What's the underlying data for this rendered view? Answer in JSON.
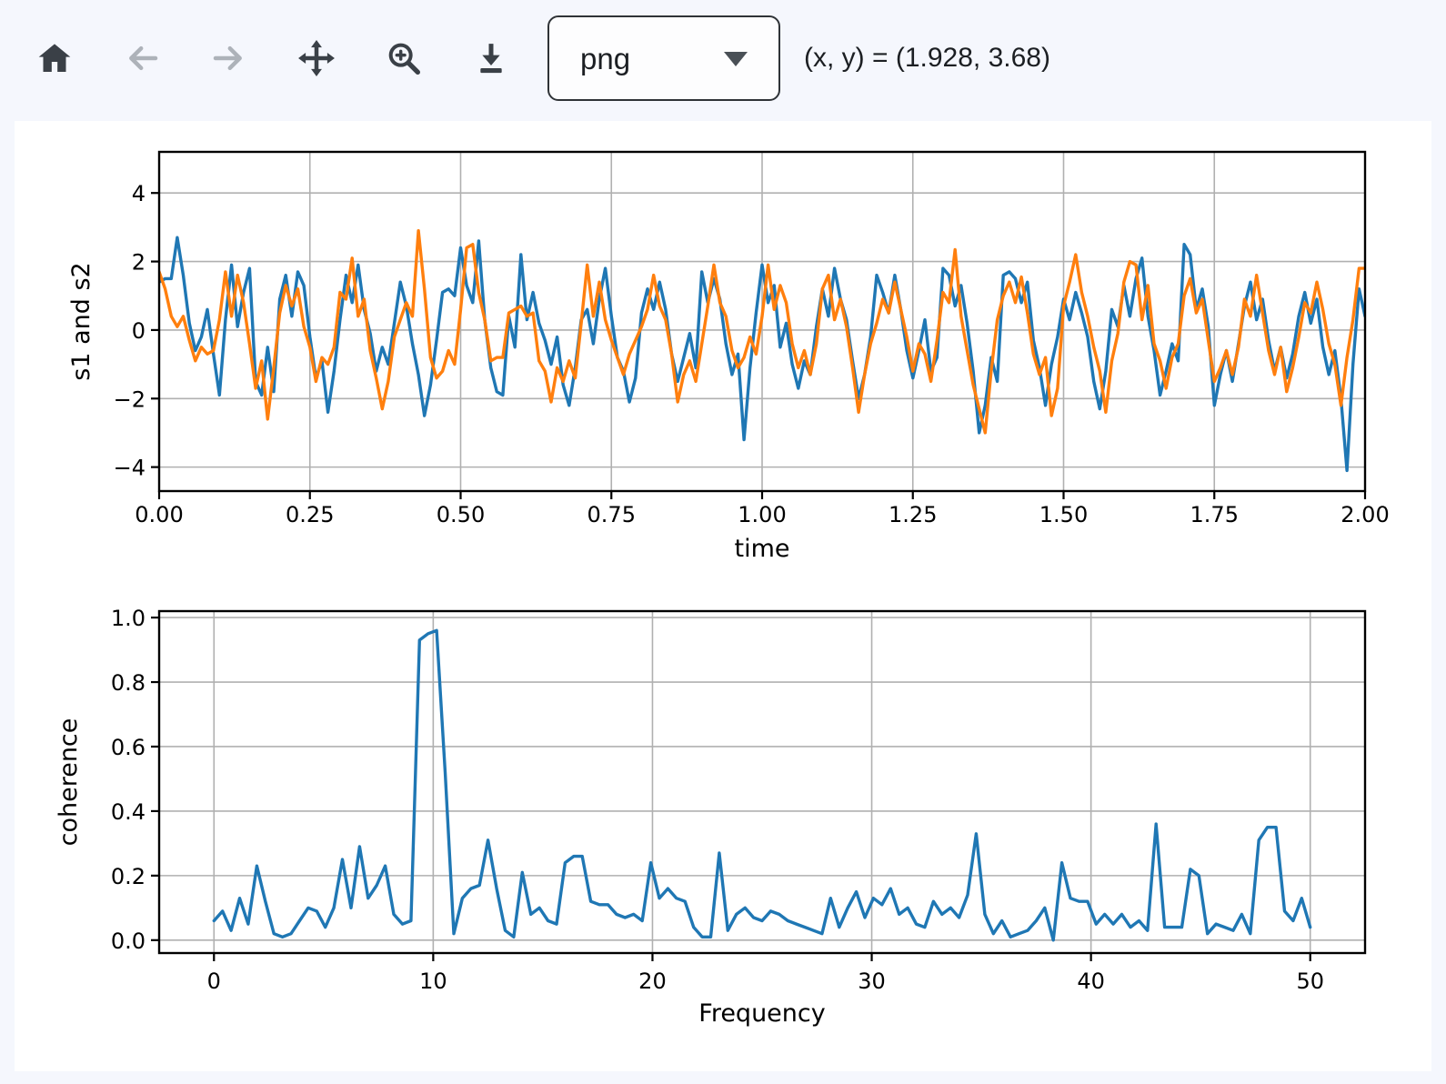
{
  "toolbar": {
    "buttons": [
      {
        "name": "home",
        "enabled": true
      },
      {
        "name": "back",
        "enabled": false
      },
      {
        "name": "forward",
        "enabled": false
      },
      {
        "name": "pan",
        "enabled": true
      },
      {
        "name": "zoom",
        "enabled": true
      },
      {
        "name": "download",
        "enabled": true
      }
    ],
    "format_value": "png",
    "coordinates": "(x, y) = (1.928, 3.68)"
  },
  "colors": {
    "page_bg": "#f5f7fd",
    "figure_bg": "#ffffff",
    "series_blue": "#1f77b4",
    "series_orange": "#ff7f0e",
    "grid": "#b0b0b0",
    "spine": "#000000",
    "tick_text": "#000000",
    "icon_enabled": "#3a4047",
    "icon_disabled": "#adb2b9"
  },
  "chart_data": [
    {
      "type": "line",
      "title": "",
      "xlabel": "time",
      "ylabel": "s1 and s2",
      "xlim": [
        0,
        2
      ],
      "ylim": [
        -4.7,
        5.2
      ],
      "grid": true,
      "xticks": [
        0,
        0.25,
        0.5,
        0.75,
        1.0,
        1.25,
        1.5,
        1.75,
        2.0
      ],
      "xtick_labels": [
        "0.00",
        "0.25",
        "0.50",
        "0.75",
        "1.00",
        "1.25",
        "1.50",
        "1.75",
        "2.00"
      ],
      "yticks": [
        -4,
        -2,
        0,
        2,
        4
      ],
      "ytick_labels": [
        "−4",
        "−2",
        "0",
        "2",
        "4"
      ],
      "x_start": 0,
      "x_step": 0.01,
      "series": [
        {
          "name": "s1",
          "color": "#1f77b4",
          "values": [
            1.4,
            1.5,
            1.5,
            2.7,
            1.6,
            0.2,
            -0.6,
            -0.2,
            0.6,
            -0.7,
            -1.9,
            0.3,
            1.9,
            0.1,
            1.1,
            1.8,
            -1.5,
            -1.9,
            -0.5,
            -1.8,
            0.9,
            1.6,
            0.4,
            1.7,
            1.3,
            -0.2,
            -1.4,
            -0.9,
            -2.4,
            -1.2,
            0.3,
            1.6,
            0.8,
            1.9,
            0.6,
            -0.1,
            -1.2,
            -0.5,
            -1.0,
            0.2,
            1.4,
            0.7,
            -0.4,
            -1.3,
            -2.5,
            -1.6,
            -0.3,
            1.1,
            1.2,
            1.0,
            2.4,
            1.3,
            0.8,
            2.6,
            0.3,
            -1.1,
            -1.8,
            -1.9,
            0.4,
            -0.5,
            2.2,
            0.3,
            1.1,
            0.2,
            -0.3,
            -1.0,
            -0.2,
            -1.6,
            -2.2,
            -1.1,
            0.3,
            0.6,
            -0.4,
            0.9,
            1.8,
            0.4,
            -0.8,
            -1.2,
            -2.1,
            -1.4,
            0.5,
            1.2,
            0.6,
            1.4,
            0.6,
            -0.7,
            -1.5,
            -0.8,
            -0.1,
            -1.1,
            1.7,
            0.8,
            1.5,
            0.9,
            -0.4,
            -1.3,
            -0.7,
            -3.2,
            -1.1,
            0.5,
            1.9,
            0.8,
            1.3,
            -0.5,
            0.2,
            -1.0,
            -1.7,
            -0.9,
            -1.3,
            0.1,
            1.2,
            0.4,
            1.8,
            0.9,
            0.3,
            -0.9,
            -2.0,
            -1.3,
            -0.2,
            1.6,
            1.1,
            0.5,
            1.6,
            0.6,
            -0.6,
            -1.4,
            -0.6,
            0.3,
            -1.2,
            -0.8,
            1.8,
            1.6,
            0.7,
            1.3,
            0.2,
            -1.2,
            -3.0,
            -2.2,
            -0.8,
            -1.5,
            1.6,
            1.7,
            1.5,
            0.8,
            1.4,
            -0.3,
            -1.1,
            -2.2,
            -1.0,
            -0.2,
            0.9,
            0.3,
            1.1,
            0.5,
            -0.2,
            -1.5,
            -2.3,
            -1.2,
            0.6,
            0.1,
            1.3,
            0.4,
            1.5,
            2.1,
            0.4,
            -0.6,
            -1.9,
            -1.2,
            -0.4,
            -0.9,
            2.5,
            2.2,
            0.6,
            1.2,
            0.1,
            -2.2,
            -1.3,
            -0.6,
            -1.5,
            -0.4,
            0.7,
            1.4,
            0.3,
            0.9,
            -0.3,
            -1.2,
            -0.5,
            -1.4,
            -0.7,
            0.4,
            1.1,
            0.2,
            0.9,
            -0.5,
            -1.3,
            -0.6,
            -2.0,
            -4.1,
            -1.0,
            1.2,
            0.4
          ]
        },
        {
          "name": "s2",
          "color": "#ff7f0e",
          "values": [
            1.7,
            1.2,
            0.4,
            0.1,
            0.4,
            -0.3,
            -0.9,
            -0.5,
            -0.7,
            -0.6,
            0.3,
            1.7,
            0.4,
            1.6,
            0.8,
            -0.4,
            -1.7,
            -0.9,
            -2.6,
            -1.1,
            0.5,
            1.3,
            0.7,
            1.2,
            0.1,
            -0.5,
            -1.5,
            -0.8,
            -1.0,
            -0.5,
            1.1,
            0.9,
            2.1,
            0.4,
            0.9,
            -0.6,
            -1.4,
            -2.3,
            -1.5,
            -0.2,
            0.3,
            0.8,
            0.4,
            2.9,
            1.2,
            -0.8,
            -1.4,
            -1.2,
            -0.6,
            -1.0,
            0.6,
            2.4,
            2.5,
            1.1,
            0.3,
            -0.9,
            -0.8,
            -0.8,
            0.5,
            0.6,
            0.7,
            0.4,
            0.5,
            -0.9,
            -1.2,
            -2.1,
            -1.1,
            -1.5,
            -0.9,
            -1.4,
            0.2,
            1.9,
            0.4,
            1.4,
            0.3,
            -0.3,
            -0.8,
            -1.3,
            -0.7,
            -0.3,
            0.1,
            0.6,
            1.6,
            0.7,
            0.3,
            -0.7,
            -2.1,
            -1.3,
            -0.9,
            -1.5,
            -0.4,
            0.7,
            1.9,
            0.8,
            0.4,
            -0.6,
            -1.1,
            -0.8,
            -0.2,
            -0.7,
            0.4,
            1.9,
            0.6,
            1.3,
            0.8,
            -0.4,
            -1.1,
            -0.6,
            -1.3,
            -0.4,
            1.2,
            1.6,
            0.3,
            0.9,
            0.1,
            -1.1,
            -2.4,
            -1.3,
            -0.4,
            0.2,
            0.9,
            0.5,
            1.4,
            0.6,
            -0.2,
            -1.2,
            -0.4,
            -0.7,
            -1.5,
            -0.3,
            1.1,
            0.8,
            2.35,
            0.4,
            -0.6,
            -1.6,
            -2.3,
            -3.0,
            -1.2,
            0.3,
            1.0,
            1.4,
            0.8,
            1.55,
            0.5,
            -0.7,
            -1.3,
            -0.8,
            -2.5,
            -1.7,
            0.7,
            1.4,
            2.2,
            1.1,
            0.4,
            -0.5,
            -1.2,
            -2.4,
            -0.9,
            -0.1,
            1.4,
            2.0,
            1.9,
            0.3,
            1.3,
            -0.4,
            -0.9,
            -1.7,
            -0.8,
            -0.4,
            1.0,
            1.5,
            0.5,
            0.9,
            -0.3,
            -1.5,
            -1.1,
            -0.6,
            -1.3,
            -0.5,
            0.9,
            0.4,
            1.6,
            0.5,
            -0.6,
            -1.3,
            -0.5,
            -1.8,
            -1.1,
            -0.2,
            0.8,
            0.5,
            1.4,
            0.6,
            -0.4,
            -1.0,
            -2.2,
            -0.8,
            0.3,
            1.8,
            1.8
          ]
        }
      ]
    },
    {
      "type": "line",
      "title": "",
      "xlabel": "Frequency",
      "ylabel": "coherence",
      "xlim": [
        -2.5,
        52.5
      ],
      "ylim": [
        -0.04,
        1.02
      ],
      "grid": true,
      "xticks": [
        0,
        10,
        20,
        30,
        40,
        50
      ],
      "xtick_labels": [
        "0",
        "10",
        "20",
        "30",
        "40",
        "50"
      ],
      "yticks": [
        0.0,
        0.2,
        0.4,
        0.6,
        0.8,
        1.0
      ],
      "ytick_labels": [
        "0.0",
        "0.2",
        "0.4",
        "0.6",
        "0.8",
        "1.0"
      ],
      "x_start": 0,
      "x_step": 0.390625,
      "series": [
        {
          "name": "coherence",
          "color": "#1f77b4",
          "values": [
            0.06,
            0.09,
            0.03,
            0.13,
            0.05,
            0.23,
            0.12,
            0.02,
            0.01,
            0.02,
            0.06,
            0.1,
            0.09,
            0.04,
            0.1,
            0.25,
            0.1,
            0.29,
            0.13,
            0.17,
            0.23,
            0.08,
            0.05,
            0.06,
            0.93,
            0.95,
            0.96,
            0.52,
            0.02,
            0.13,
            0.16,
            0.17,
            0.31,
            0.16,
            0.03,
            0.01,
            0.21,
            0.08,
            0.1,
            0.06,
            0.05,
            0.24,
            0.26,
            0.26,
            0.12,
            0.11,
            0.11,
            0.08,
            0.07,
            0.08,
            0.06,
            0.24,
            0.13,
            0.16,
            0.13,
            0.12,
            0.04,
            0.01,
            0.01,
            0.27,
            0.03,
            0.08,
            0.1,
            0.07,
            0.06,
            0.09,
            0.08,
            0.06,
            0.05,
            0.04,
            0.03,
            0.02,
            0.13,
            0.04,
            0.1,
            0.15,
            0.07,
            0.13,
            0.11,
            0.16,
            0.08,
            0.1,
            0.05,
            0.04,
            0.12,
            0.08,
            0.1,
            0.07,
            0.14,
            0.33,
            0.08,
            0.02,
            0.06,
            0.01,
            0.02,
            0.03,
            0.06,
            0.1,
            0.0,
            0.24,
            0.13,
            0.12,
            0.12,
            0.05,
            0.08,
            0.05,
            0.08,
            0.04,
            0.06,
            0.03,
            0.36,
            0.04,
            0.04,
            0.04,
            0.22,
            0.2,
            0.02,
            0.05,
            0.04,
            0.03,
            0.08,
            0.02,
            0.31,
            0.35,
            0.35,
            0.09,
            0.06,
            0.13,
            0.04
          ]
        }
      ]
    }
  ]
}
